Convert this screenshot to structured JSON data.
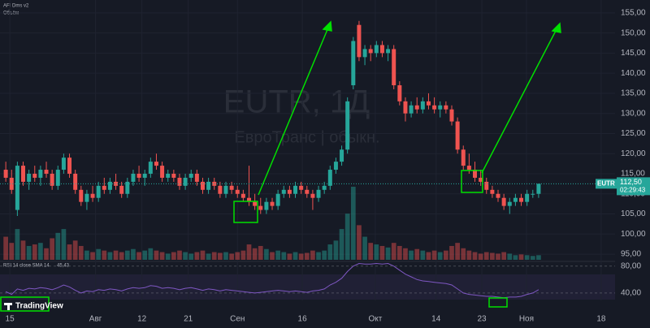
{
  "chart_data": {
    "type": "candlestick",
    "symbol_watermark": "EUTR, 1Д",
    "name_watermark": "ЕвроТранс | обыкн.",
    "indicator_label": "AFI Dms v2",
    "volume_label": "Объём",
    "rsi_label": "RSI 14 close SMA 14",
    "rsi_value": "45,43",
    "logo": "TradingView",
    "ticker_tag": "EUTR",
    "last_price": {
      "value": 112.5,
      "label": "112,50"
    },
    "countdown": "02:29:43",
    "up_color": "#26a69a",
    "down_color": "#ef5350",
    "rsi_color": "#7e57c2",
    "grid": true,
    "xlim": [
      -1,
      105.2
    ],
    "xticks": [
      {
        "value": 0.7,
        "label": "15"
      },
      {
        "value": 15.5,
        "label": "Авг"
      },
      {
        "value": 23.5,
        "label": "12"
      },
      {
        "value": 31.5,
        "label": "21"
      },
      {
        "value": 40,
        "label": "Сен"
      },
      {
        "value": 51.2,
        "label": "16"
      },
      {
        "value": 63.8,
        "label": "Окт"
      },
      {
        "value": 74.3,
        "label": "14"
      },
      {
        "value": 82.2,
        "label": "23"
      },
      {
        "value": 89.9,
        "label": "Ноя"
      },
      {
        "value": 102.8,
        "label": "18"
      }
    ],
    "ylim": [
      93.6,
      158.2
    ],
    "yticks": [
      {
        "value": 95,
        "label": "95,00"
      },
      {
        "value": 100,
        "label": "100,00"
      },
      {
        "value": 105,
        "label": "105,00"
      },
      {
        "value": 110,
        "label": "110,00"
      },
      {
        "value": 115,
        "label": "115,00"
      },
      {
        "value": 120,
        "label": "120,00"
      },
      {
        "value": 125,
        "label": "125,00"
      },
      {
        "value": 130,
        "label": "130,00"
      },
      {
        "value": 135,
        "label": "135,00"
      },
      {
        "value": 140,
        "label": "140,00"
      },
      {
        "value": 145,
        "label": "145,00"
      },
      {
        "value": 150,
        "label": "150,00"
      },
      {
        "value": 155,
        "label": "155,00"
      }
    ],
    "rsi_lim": [
      29,
      87
    ],
    "rsi_ticks": [
      {
        "value": 80,
        "label": "80,00"
      },
      {
        "value": 40,
        "label": "40,00"
      }
    ],
    "ohlc": [
      [
        116,
        118,
        113,
        114
      ],
      [
        114,
        116,
        110,
        111
      ],
      [
        106,
        118,
        104.5,
        117
      ],
      [
        117,
        118,
        112,
        113
      ],
      [
        113,
        116,
        111,
        115
      ],
      [
        115,
        117,
        113,
        114
      ],
      [
        114,
        117,
        112,
        116
      ],
      [
        116,
        118,
        114,
        115
      ],
      [
        115,
        116,
        111,
        112
      ],
      [
        112,
        117,
        111,
        116
      ],
      [
        116,
        120,
        115,
        119
      ],
      [
        119,
        120,
        114,
        115
      ],
      [
        115,
        116,
        110,
        111
      ],
      [
        111,
        112,
        107,
        108
      ],
      [
        108,
        111,
        106,
        110
      ],
      [
        110,
        112,
        108,
        109
      ],
      [
        109,
        113,
        108,
        112
      ],
      [
        112,
        114,
        110,
        111
      ],
      [
        111,
        114,
        110,
        113
      ],
      [
        113,
        115,
        111,
        112
      ],
      [
        112,
        113,
        109,
        110
      ],
      [
        110,
        114,
        109,
        113
      ],
      [
        113,
        116,
        112,
        115
      ],
      [
        115,
        117,
        113,
        114
      ],
      [
        114,
        116,
        112,
        115
      ],
      [
        115,
        119,
        114,
        118
      ],
      [
        118,
        120,
        116,
        117
      ],
      [
        117,
        118,
        113,
        114
      ],
      [
        114,
        116,
        113,
        115
      ],
      [
        115,
        116,
        113,
        114
      ],
      [
        114,
        115,
        111,
        112
      ],
      [
        112,
        115,
        111,
        114
      ],
      [
        114,
        116,
        113,
        115
      ],
      [
        115,
        116,
        112,
        113
      ],
      [
        113,
        114,
        110,
        111
      ],
      [
        111,
        114,
        110,
        113
      ],
      [
        113,
        114,
        111,
        112
      ],
      [
        112,
        113,
        109,
        110
      ],
      [
        110,
        113,
        109,
        112
      ],
      [
        112,
        113,
        110,
        111
      ],
      [
        111,
        112,
        109,
        110
      ],
      [
        110,
        111,
        108,
        109
      ],
      [
        109,
        117,
        107,
        108
      ],
      [
        108,
        110,
        106,
        107
      ],
      [
        107,
        109,
        105,
        106
      ],
      [
        106,
        109,
        105,
        108
      ],
      [
        108,
        109,
        106,
        107
      ],
      [
        107,
        111,
        106,
        110
      ],
      [
        110,
        112,
        109,
        111
      ],
      [
        111,
        112,
        109,
        110
      ],
      [
        110,
        113,
        109,
        112
      ],
      [
        112,
        113,
        110,
        111
      ],
      [
        111,
        112,
        109,
        110
      ],
      [
        110,
        111,
        106,
        109
      ],
      [
        109,
        112,
        108,
        111
      ],
      [
        111,
        113,
        110,
        112
      ],
      [
        112,
        117,
        111,
        116
      ],
      [
        116,
        119,
        115,
        118
      ],
      [
        118,
        122,
        117,
        121
      ],
      [
        121,
        134,
        120,
        133
      ],
      [
        137,
        149,
        136,
        148
      ],
      [
        152,
        153,
        143,
        144
      ],
      [
        144,
        147,
        142,
        146
      ],
      [
        146,
        147,
        143,
        145
      ],
      [
        145,
        148,
        144,
        147
      ],
      [
        147,
        148,
        144,
        145
      ],
      [
        145,
        147,
        143,
        146
      ],
      [
        146,
        147,
        136,
        137
      ],
      [
        137,
        138,
        132,
        133
      ],
      [
        133,
        134,
        128,
        130
      ],
      [
        130,
        133,
        129,
        132
      ],
      [
        132,
        134,
        130,
        131
      ],
      [
        131,
        134,
        130,
        133
      ],
      [
        133,
        135,
        131,
        132
      ],
      [
        132,
        134,
        130,
        131
      ],
      [
        131,
        133,
        129,
        132
      ],
      [
        132,
        133,
        130,
        131
      ],
      [
        131,
        132,
        127,
        128
      ],
      [
        128,
        129,
        120,
        121
      ],
      [
        121,
        122,
        116,
        117
      ],
      [
        117,
        120,
        115,
        116
      ],
      [
        116,
        118,
        113,
        114
      ],
      [
        114,
        116,
        112,
        113
      ],
      [
        113,
        114,
        110,
        111
      ],
      [
        111,
        112,
        109,
        110
      ],
      [
        110,
        111,
        108,
        109
      ],
      [
        109,
        110,
        106,
        107
      ],
      [
        107,
        109,
        105,
        108
      ],
      [
        108,
        110,
        107,
        109
      ],
      [
        109,
        110,
        107,
        108
      ],
      [
        108,
        111,
        107,
        110
      ],
      [
        110,
        111,
        109,
        110
      ],
      [
        110,
        112.5,
        109,
        112.5
      ]
    ],
    "volume": [
      30,
      22,
      40,
      25,
      18,
      20,
      22,
      15,
      28,
      35,
      40,
      20,
      25,
      18,
      12,
      10,
      14,
      12,
      10,
      12,
      10,
      12,
      14,
      10,
      12,
      15,
      12,
      10,
      8,
      10,
      12,
      10,
      8,
      10,
      12,
      8,
      10,
      9,
      10,
      8,
      10,
      12,
      20,
      15,
      18,
      14,
      10,
      12,
      10,
      8,
      10,
      8,
      9,
      12,
      10,
      12,
      20,
      25,
      40,
      60,
      95,
      45,
      30,
      22,
      20,
      18,
      16,
      22,
      18,
      15,
      12,
      14,
      12,
      10,
      12,
      10,
      12,
      18,
      22,
      15,
      12,
      10,
      8,
      10,
      9,
      8,
      10,
      8,
      6,
      7,
      6,
      5,
      6
    ],
    "rsi": [
      42,
      38,
      46,
      44,
      47,
      46,
      48,
      47,
      45,
      48,
      52,
      49,
      44,
      40,
      43,
      42,
      45,
      44,
      46,
      45,
      43,
      46,
      48,
      47,
      48,
      51,
      50,
      47,
      48,
      47,
      45,
      47,
      48,
      46,
      44,
      46,
      45,
      43,
      45,
      44,
      43,
      42,
      41,
      40,
      41,
      42,
      43,
      44,
      43,
      42,
      43,
      42,
      41,
      43,
      44,
      46,
      52,
      56,
      62,
      72,
      80,
      84,
      83,
      83,
      84,
      83,
      84,
      80,
      74,
      68,
      64,
      60,
      58,
      57,
      56,
      55,
      54,
      52,
      46,
      40,
      38,
      37,
      36,
      35,
      35,
      34,
      33,
      34,
      34,
      35,
      38,
      40,
      45
    ]
  }
}
